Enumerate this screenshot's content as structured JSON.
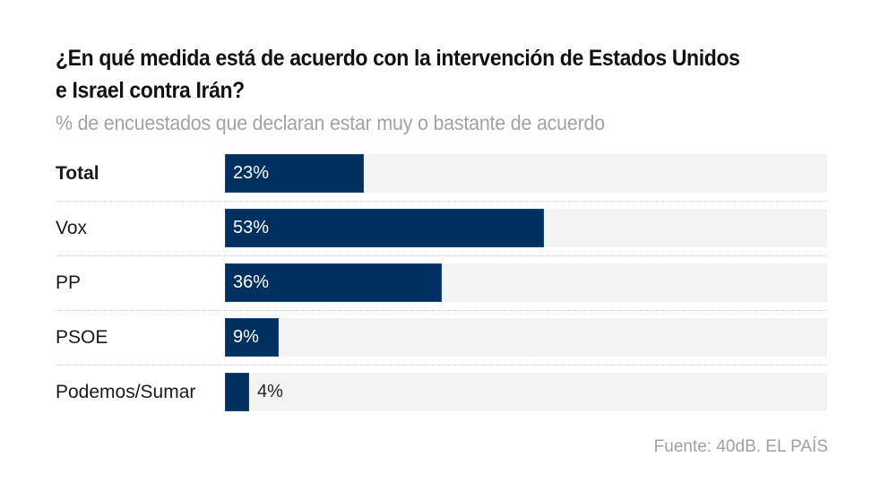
{
  "header": {
    "title": "¿En qué medida está de acuerdo con la intervención de Estados Unidos e Israel contra Irán?",
    "subtitle": "% de encuestados que declaran estar muy o bastante de acuerdo"
  },
  "footer": {
    "source": "Fuente: 40dB. EL PAÍS"
  },
  "colors": {
    "bar": "#00305f",
    "track": "#f3f3f3",
    "subtitle": "#a3a3a3"
  },
  "chart_data": {
    "type": "bar",
    "orientation": "horizontal",
    "title": "¿En qué medida está de acuerdo con la intervención de Estados Unidos e Israel contra Irán?",
    "subtitle": "% de encuestados que declaran estar muy o bastante de acuerdo",
    "categories": [
      "Total",
      "Vox",
      "PP",
      "PSOE",
      "Podemos/Sumar"
    ],
    "values": [
      23,
      53,
      36,
      9,
      4
    ],
    "value_labels": [
      "23%",
      "53%",
      "36%",
      "9%",
      "4%"
    ],
    "bold_categories": [
      "Total"
    ],
    "xlim": [
      0,
      100
    ],
    "xlabel": "",
    "ylabel": "",
    "grid": false,
    "legend": "none",
    "source": "Fuente: 40dB. EL PAÍS"
  }
}
